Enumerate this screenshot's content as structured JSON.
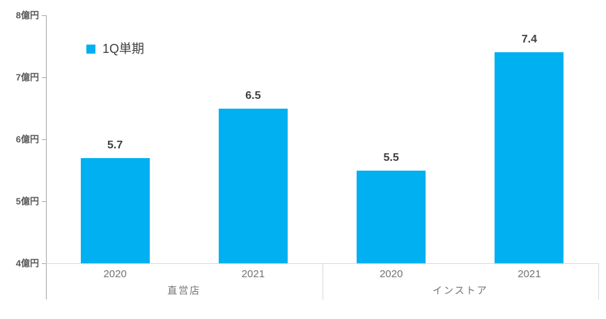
{
  "chart_data": {
    "type": "bar",
    "title": "",
    "unit": "億円",
    "ylim": [
      4,
      8
    ],
    "grid": false,
    "y_ticks": [
      {
        "value": 8,
        "label": "8億円"
      },
      {
        "value": 7,
        "label": "7億円"
      },
      {
        "value": 6,
        "label": "6億円"
      },
      {
        "value": 5,
        "label": "5億円"
      },
      {
        "value": 4,
        "label": "4億円"
      }
    ],
    "legend": [
      {
        "label": "1Q単期",
        "color": "#00B0F0"
      }
    ],
    "legend_position": "inside-top-left",
    "bar_color": "#00B0F0",
    "groups": [
      {
        "label": "直営店",
        "items": [
          {
            "category": "2020",
            "value": 5.7,
            "value_label": "5.7"
          },
          {
            "category": "2021",
            "value": 6.5,
            "value_label": "6.5"
          }
        ]
      },
      {
        "label": "インストア",
        "items": [
          {
            "category": "2020",
            "value": 5.5,
            "value_label": "5.5"
          },
          {
            "category": "2021",
            "value": 7.4,
            "value_label": "7.4"
          }
        ]
      }
    ],
    "colors": {
      "bar": "#00B0F0",
      "axis_line": "#a6a6a6",
      "baseline": "#d9d9d9",
      "separator": "#d9d9d9",
      "tick_label": "#595959",
      "value_label": "#404040",
      "category_label": "#737373",
      "group_label": "#737373",
      "legend_label": "#404040"
    }
  }
}
